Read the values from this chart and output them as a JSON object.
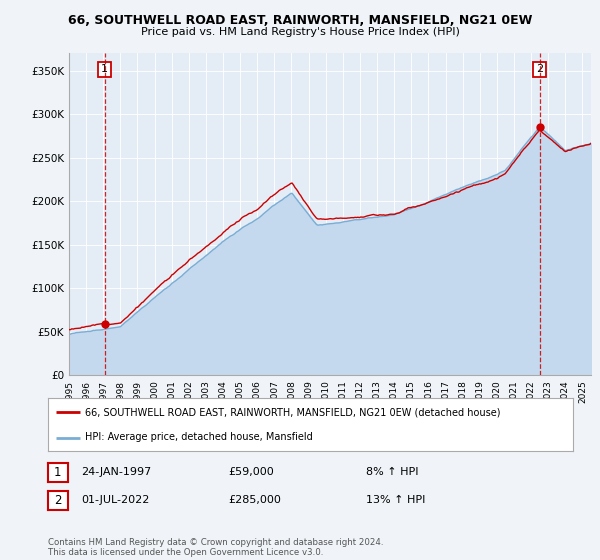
{
  "title": "66, SOUTHWELL ROAD EAST, RAINWORTH, MANSFIELD, NG21 0EW",
  "subtitle": "Price paid vs. HM Land Registry's House Price Index (HPI)",
  "ylabel_ticks": [
    "£0",
    "£50K",
    "£100K",
    "£150K",
    "£200K",
    "£250K",
    "£300K",
    "£350K"
  ],
  "ylabel_values": [
    0,
    50000,
    100000,
    150000,
    200000,
    250000,
    300000,
    350000
  ],
  "ylim": [
    0,
    370000
  ],
  "legend_line1": "66, SOUTHWELL ROAD EAST, RAINWORTH, MANSFIELD, NG21 0EW (detached house)",
  "legend_line2": "HPI: Average price, detached house, Mansfield",
  "annotation1_label": "1",
  "annotation1_date": "24-JAN-1997",
  "annotation1_price": "£59,000",
  "annotation1_hpi": "8% ↑ HPI",
  "annotation2_label": "2",
  "annotation2_date": "01-JUL-2022",
  "annotation2_price": "£285,000",
  "annotation2_hpi": "13% ↑ HPI",
  "footer": "Contains HM Land Registry data © Crown copyright and database right 2024.\nThis data is licensed under the Open Government Licence v3.0.",
  "hpi_color": "#7aadd4",
  "hpi_fill_color": "#c5d9ee",
  "price_color": "#cc0000",
  "dashed_line_color": "#cc0000",
  "background_color": "#f0f4f8",
  "plot_bg_color": "#e4edf6",
  "grid_color": "#ffffff"
}
